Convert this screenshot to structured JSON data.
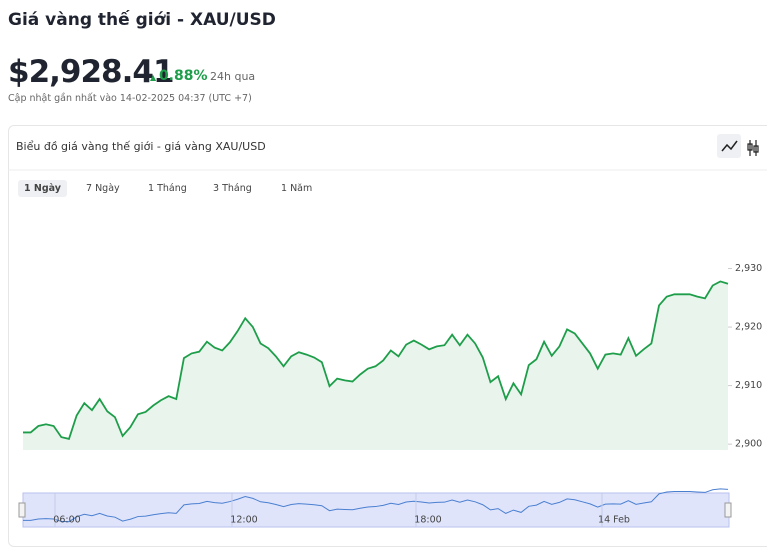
{
  "header": {
    "title": "Giá vàng thế giới - XAU/USD",
    "price": "$2,928.41",
    "change": "0.88%",
    "change_period": "24h qua",
    "updated": "Cập nhật gần nhất vào 14-02-2025 04:37 (UTC +7)"
  },
  "card": {
    "title": "Biểu đồ giá vàng thế giới - giá vàng XAU/USD",
    "tabs": [
      "1 Ngày",
      "7 Ngày",
      "1 Tháng",
      "3 Tháng",
      "1 Năm"
    ]
  },
  "chart_data": {
    "type": "area",
    "color": "#1e9e4a",
    "values": [
      2902.0,
      2902.0,
      2903.1,
      2903.4,
      2903.1,
      2901.2,
      2900.9,
      2904.9,
      2907.0,
      2905.8,
      2907.7,
      2905.6,
      2904.6,
      2901.4,
      2902.9,
      2905.1,
      2905.5,
      2906.6,
      2907.5,
      2908.2,
      2907.7,
      2914.7,
      2915.5,
      2915.8,
      2917.5,
      2916.5,
      2916.0,
      2917.4,
      2919.3,
      2921.5,
      2920.0,
      2917.2,
      2916.4,
      2915.0,
      2913.3,
      2915.0,
      2915.7,
      2915.3,
      2914.8,
      2914.0,
      2909.9,
      2911.2,
      2910.9,
      2910.7,
      2911.9,
      2912.9,
      2913.3,
      2914.3,
      2916.0,
      2915.0,
      2917.0,
      2917.7,
      2917.0,
      2916.2,
      2916.7,
      2916.9,
      2918.7,
      2916.9,
      2918.7,
      2917.2,
      2914.8,
      2910.6,
      2911.6,
      2907.7,
      2910.4,
      2908.5,
      2913.5,
      2914.5,
      2917.5,
      2915.1,
      2916.7,
      2919.6,
      2918.9,
      2917.2,
      2915.5,
      2912.9,
      2915.3,
      2915.5,
      2915.3,
      2918.1,
      2915.1,
      2916.2,
      2917.2,
      2923.7,
      2925.2,
      2925.6,
      2925.6,
      2925.6,
      2925.2,
      2924.9,
      2927.1,
      2927.8,
      2927.4
    ],
    "ylim": [
      2899,
      2940
    ],
    "yticks": [
      {
        "value": 2900,
        "label": "2,900"
      },
      {
        "value": 2910,
        "label": "2,910"
      },
      {
        "value": 2920,
        "label": "2,920"
      },
      {
        "value": 2930,
        "label": "2,930"
      }
    ],
    "navigator_labels": [
      "06:00",
      "12:00",
      "18:00",
      "14 Feb"
    ]
  }
}
